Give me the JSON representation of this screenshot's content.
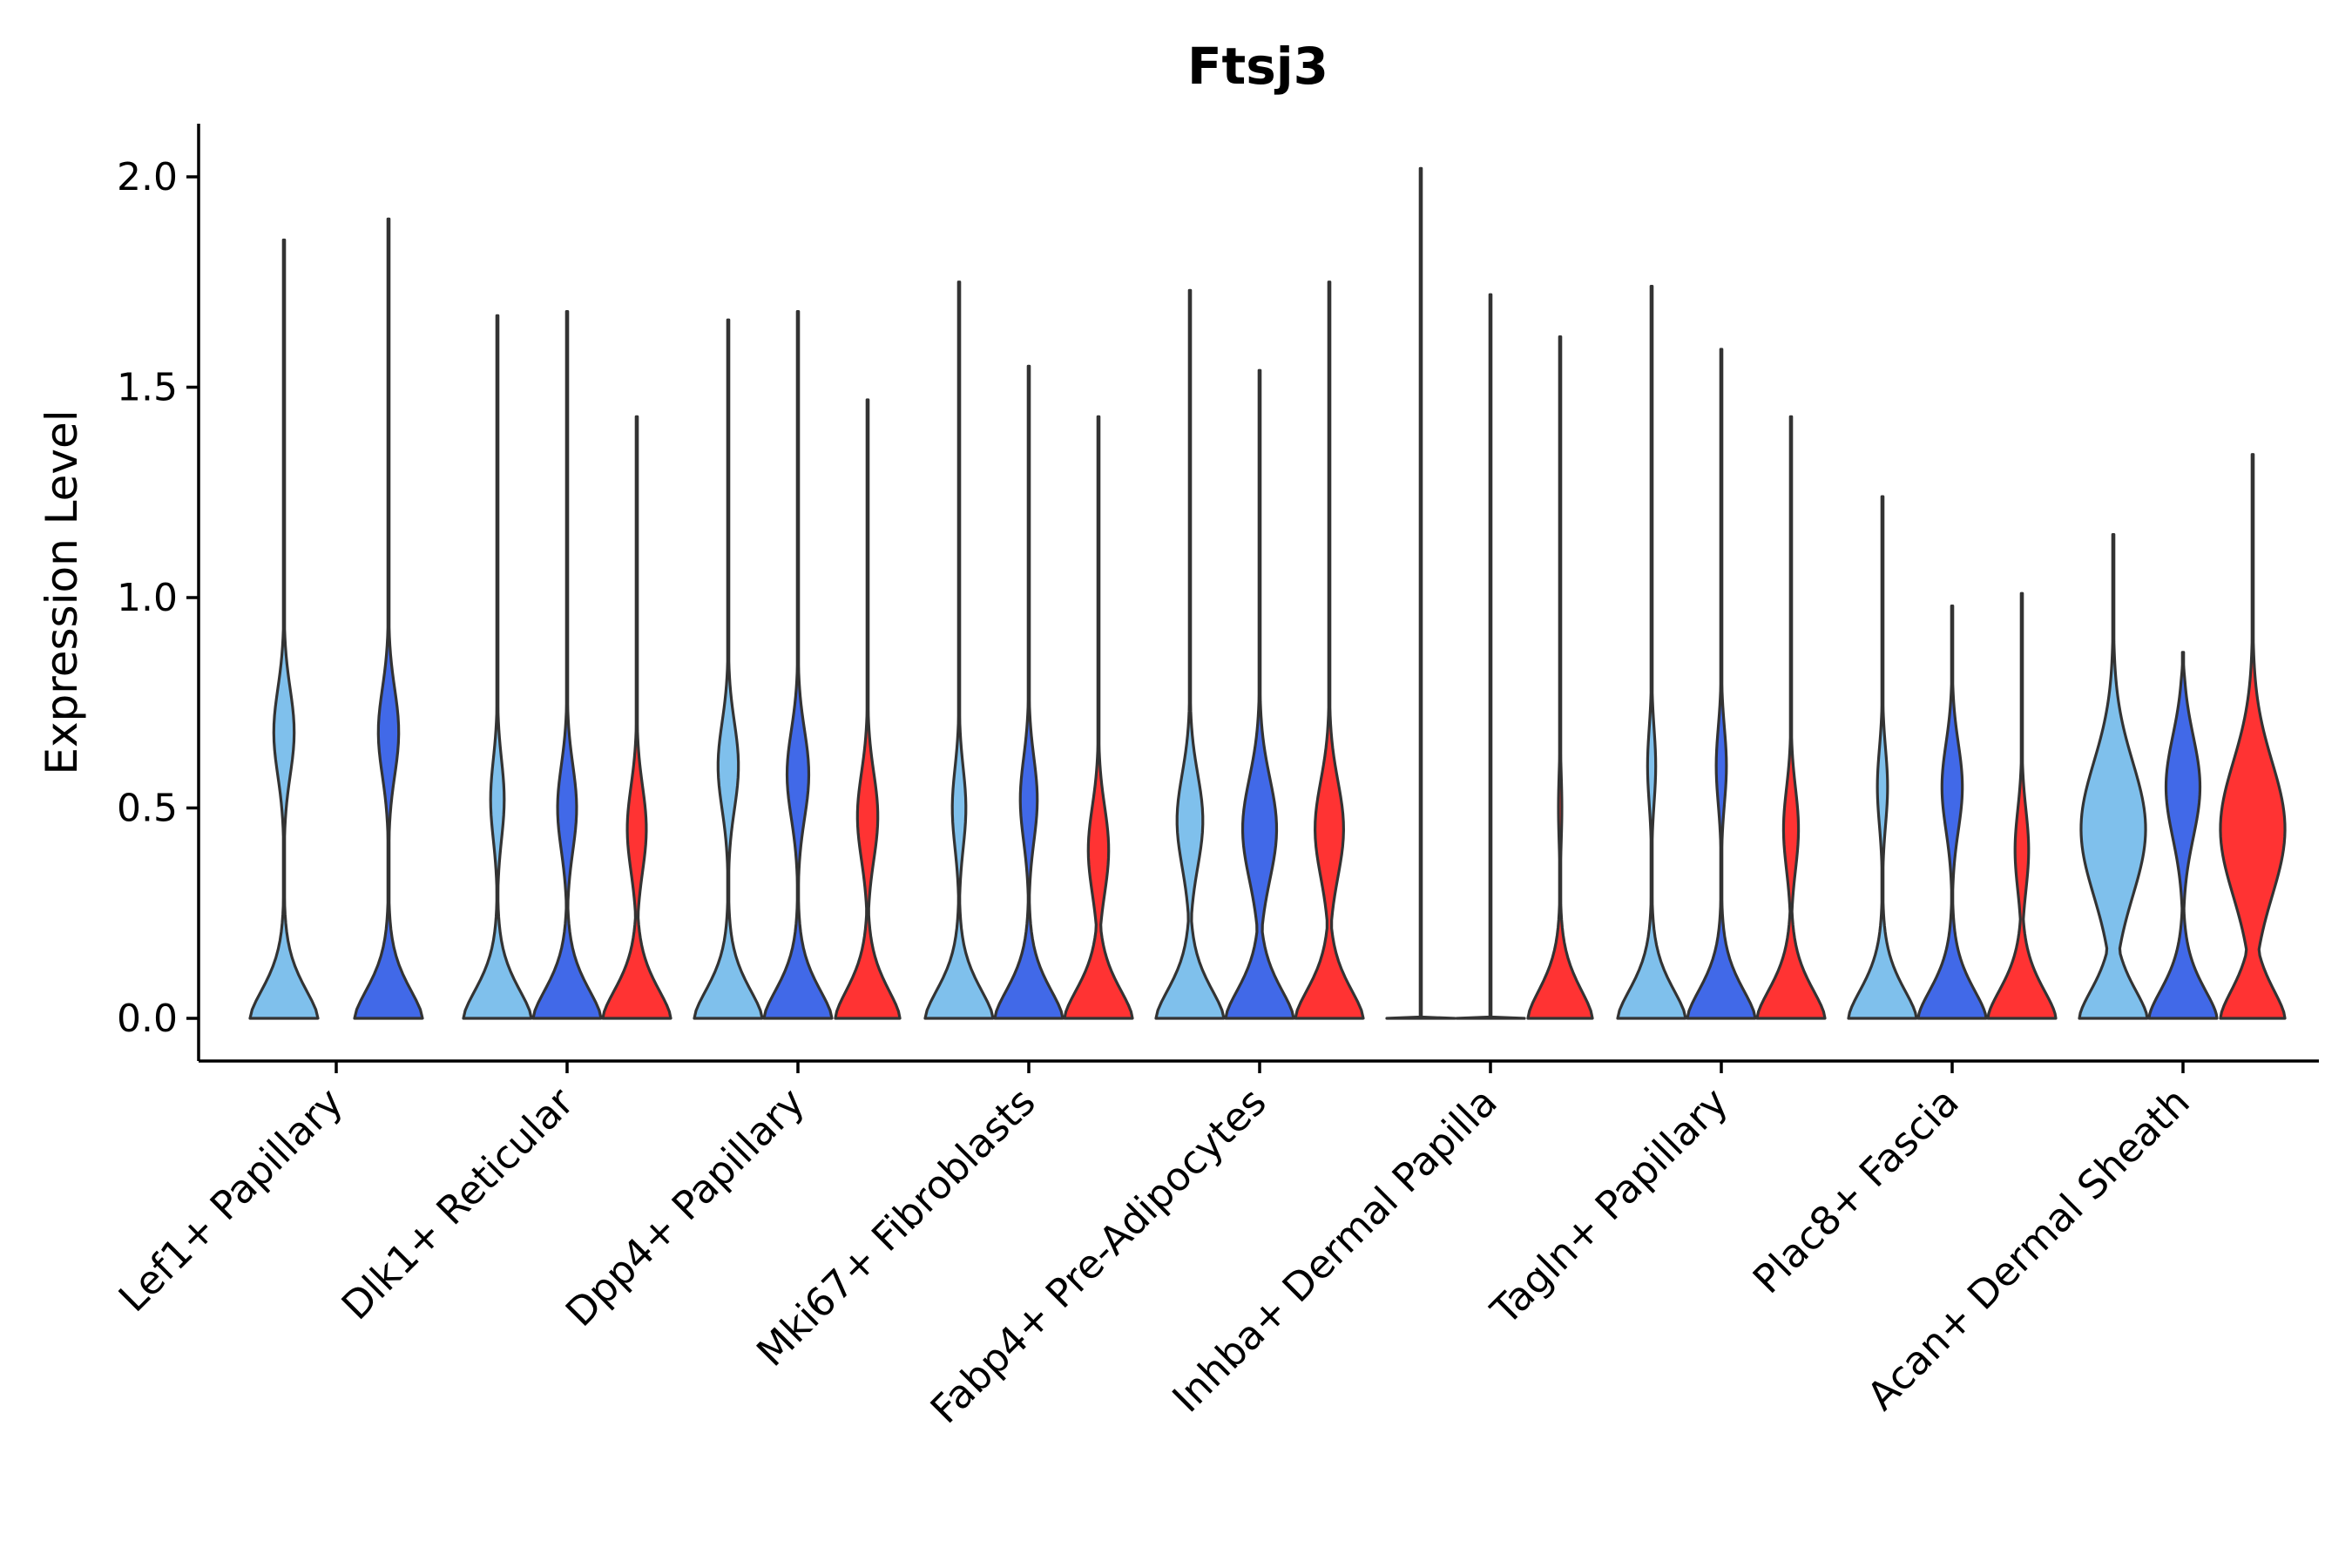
{
  "chart_data": {
    "type": "violin",
    "title": "Ftsj3",
    "xlabel": "",
    "ylabel": "Expression Level",
    "ylim": [
      -0.1,
      2.12
    ],
    "yticks": [
      0.0,
      0.5,
      1.0,
      1.5,
      2.0
    ],
    "ytick_labels": [
      "0.0",
      "0.5",
      "1.0",
      "1.5",
      "2.0"
    ],
    "grid": false,
    "legend": "none",
    "series_colors": {
      "light": "#7fc0ec",
      "blue": "#4169e8",
      "red": "#ff3333"
    },
    "categories": [
      {
        "label": "Lef1+ Papillary",
        "violins": [
          {
            "color": "light",
            "max": 1.85,
            "mode": 0.68,
            "mode_width": 0.3,
            "base_width": 1.0
          },
          {
            "color": "blue",
            "max": 1.9,
            "mode": 0.68,
            "mode_width": 0.3,
            "base_width": 1.0
          }
        ]
      },
      {
        "label": "Dlk1+ Reticular",
        "violins": [
          {
            "color": "light",
            "max": 1.67,
            "mode": 0.52,
            "mode_width": 0.2,
            "base_width": 1.0
          },
          {
            "color": "blue",
            "max": 1.68,
            "mode": 0.5,
            "mode_width": 0.28,
            "base_width": 1.0
          },
          {
            "color": "red",
            "max": 1.43,
            "mode": 0.45,
            "mode_width": 0.28,
            "base_width": 1.0
          }
        ]
      },
      {
        "label": "Dpp4+ Papillary",
        "violins": [
          {
            "color": "light",
            "max": 1.66,
            "mode": 0.6,
            "mode_width": 0.3,
            "base_width": 1.0
          },
          {
            "color": "blue",
            "max": 1.68,
            "mode": 0.58,
            "mode_width": 0.32,
            "base_width": 1.0
          },
          {
            "color": "red",
            "max": 1.47,
            "mode": 0.48,
            "mode_width": 0.3,
            "base_width": 0.95
          }
        ]
      },
      {
        "label": "Mki67+ Fibroblasts",
        "violins": [
          {
            "color": "light",
            "max": 1.75,
            "mode": 0.5,
            "mode_width": 0.2,
            "base_width": 1.0
          },
          {
            "color": "blue",
            "max": 1.55,
            "mode": 0.52,
            "mode_width": 0.25,
            "base_width": 1.0
          },
          {
            "color": "red",
            "max": 1.43,
            "mode": 0.4,
            "mode_width": 0.3,
            "base_width": 1.0
          }
        ]
      },
      {
        "label": "Fabp4+ Pre-Adipocytes",
        "violins": [
          {
            "color": "light",
            "max": 1.73,
            "mode": 0.47,
            "mode_width": 0.38,
            "base_width": 1.0
          },
          {
            "color": "blue",
            "max": 1.54,
            "mode": 0.45,
            "mode_width": 0.5,
            "base_width": 1.0
          },
          {
            "color": "red",
            "max": 1.75,
            "mode": 0.45,
            "mode_width": 0.42,
            "base_width": 1.0
          }
        ]
      },
      {
        "label": "Inhba+ Dermal Papilla",
        "violins": [
          {
            "color": "light",
            "max": 2.02,
            "mode": 0.0,
            "mode_width": 0.0,
            "base_width": 1.0,
            "flat": true
          },
          {
            "color": "blue",
            "max": 1.72,
            "mode": 0.0,
            "mode_width": 0.0,
            "base_width": 1.0,
            "flat": true
          },
          {
            "color": "red",
            "max": 1.62,
            "mode": 0.5,
            "mode_width": 0.05,
            "base_width": 0.95
          }
        ]
      },
      {
        "label": "Tagln+ Papillary",
        "violins": [
          {
            "color": "light",
            "max": 1.74,
            "mode": 0.6,
            "mode_width": 0.12,
            "base_width": 1.0
          },
          {
            "color": "blue",
            "max": 1.59,
            "mode": 0.6,
            "mode_width": 0.15,
            "base_width": 1.0
          },
          {
            "color": "red",
            "max": 1.43,
            "mode": 0.45,
            "mode_width": 0.22,
            "base_width": 1.0
          }
        ]
      },
      {
        "label": "Plac8+ Fascia",
        "violins": [
          {
            "color": "light",
            "max": 1.24,
            "mode": 0.55,
            "mode_width": 0.15,
            "base_width": 1.0
          },
          {
            "color": "blue",
            "max": 0.98,
            "mode": 0.55,
            "mode_width": 0.3,
            "base_width": 1.0
          },
          {
            "color": "red",
            "max": 1.01,
            "mode": 0.4,
            "mode_width": 0.2,
            "base_width": 1.0
          }
        ]
      },
      {
        "label": "Acan+ Dermal Sheath",
        "violins": [
          {
            "color": "light",
            "max": 1.15,
            "mode": 0.45,
            "mode_width": 0.95,
            "base_width": 1.0
          },
          {
            "color": "blue",
            "max": 0.87,
            "mode": 0.55,
            "mode_width": 0.5,
            "base_width": 1.0
          },
          {
            "color": "red",
            "max": 1.34,
            "mode": 0.45,
            "mode_width": 0.95,
            "base_width": 0.95
          }
        ]
      }
    ]
  }
}
